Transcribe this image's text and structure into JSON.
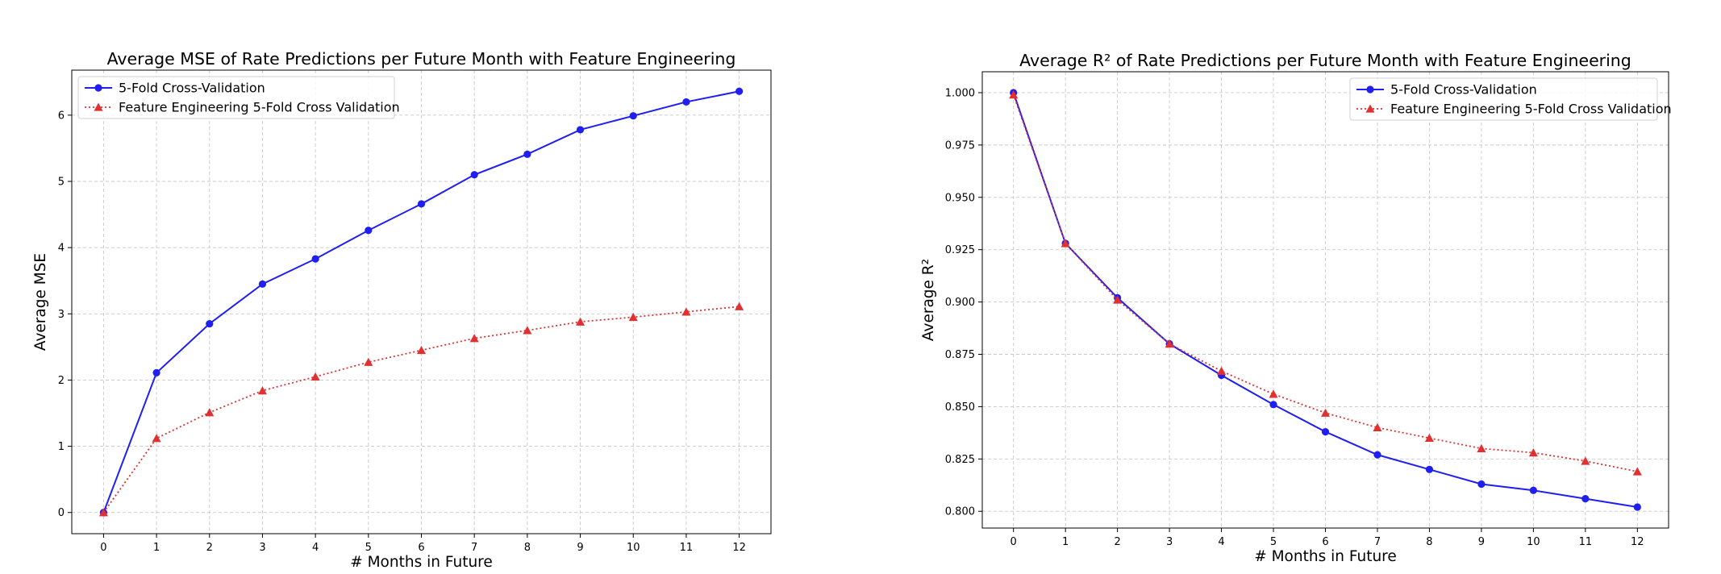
{
  "chart_data": [
    {
      "type": "line",
      "title": "Average MSE of Rate Predictions per Future Month with Feature Engineering",
      "xlabel": "# Months in Future",
      "ylabel": "Average MSE",
      "x": [
        0,
        1,
        2,
        3,
        4,
        5,
        6,
        7,
        8,
        9,
        10,
        11,
        12
      ],
      "x_tick_labels": [
        "0",
        "1",
        "2",
        "3",
        "4",
        "5",
        "6",
        "7",
        "8",
        "9",
        "10",
        "11",
        "12"
      ],
      "y_tick_labels": [
        "0",
        "1",
        "2",
        "3",
        "4",
        "5",
        "6"
      ],
      "y_ticks": [
        0,
        1,
        2,
        3,
        4,
        5,
        6
      ],
      "xlim": [
        -0.6,
        12.6
      ],
      "ylim": [
        -0.32,
        6.68
      ],
      "grid": true,
      "legend_position": "upper-left",
      "series": [
        {
          "name": "5-Fold Cross-Validation",
          "color": "#1f1ff2",
          "marker": "circle",
          "linestyle": "solid",
          "values": [
            0.0,
            2.11,
            2.85,
            3.45,
            3.83,
            4.26,
            4.66,
            5.1,
            5.41,
            5.78,
            5.99,
            6.2,
            6.36
          ]
        },
        {
          "name": "Feature Engineering 5-Fold Cross Validation",
          "color": "#e03030",
          "marker": "triangle",
          "linestyle": "dotted",
          "values": [
            0.0,
            1.12,
            1.51,
            1.84,
            2.05,
            2.27,
            2.45,
            2.63,
            2.75,
            2.88,
            2.95,
            3.03,
            3.11
          ]
        }
      ]
    },
    {
      "type": "line",
      "title": "Average R² of Rate Predictions per Future Month with Feature Engineering",
      "xlabel": "# Months in Future",
      "ylabel": "Average R²",
      "x": [
        0,
        1,
        2,
        3,
        4,
        5,
        6,
        7,
        8,
        9,
        10,
        11,
        12
      ],
      "x_tick_labels": [
        "0",
        "1",
        "2",
        "3",
        "4",
        "5",
        "6",
        "7",
        "8",
        "9",
        "10",
        "11",
        "12"
      ],
      "y_tick_labels": [
        "0.800",
        "0.825",
        "0.850",
        "0.875",
        "0.900",
        "0.925",
        "0.950",
        "0.975",
        "1.000"
      ],
      "y_ticks": [
        0.8,
        0.825,
        0.85,
        0.875,
        0.9,
        0.925,
        0.95,
        0.975,
        1.0
      ],
      "xlim": [
        -0.6,
        12.6
      ],
      "ylim": [
        0.792,
        1.01
      ],
      "grid": true,
      "legend_position": "upper-right",
      "series": [
        {
          "name": "5-Fold Cross-Validation",
          "color": "#1f1ff2",
          "marker": "circle",
          "linestyle": "solid",
          "values": [
            1.0,
            0.928,
            0.902,
            0.88,
            0.865,
            0.851,
            0.838,
            0.827,
            0.82,
            0.813,
            0.81,
            0.806,
            0.802
          ]
        },
        {
          "name": "Feature Engineering 5-Fold Cross Validation",
          "color": "#e03030",
          "marker": "triangle",
          "linestyle": "dotted",
          "values": [
            0.999,
            0.928,
            0.901,
            0.88,
            0.867,
            0.856,
            0.847,
            0.84,
            0.835,
            0.83,
            0.828,
            0.824,
            0.819
          ]
        }
      ]
    }
  ]
}
